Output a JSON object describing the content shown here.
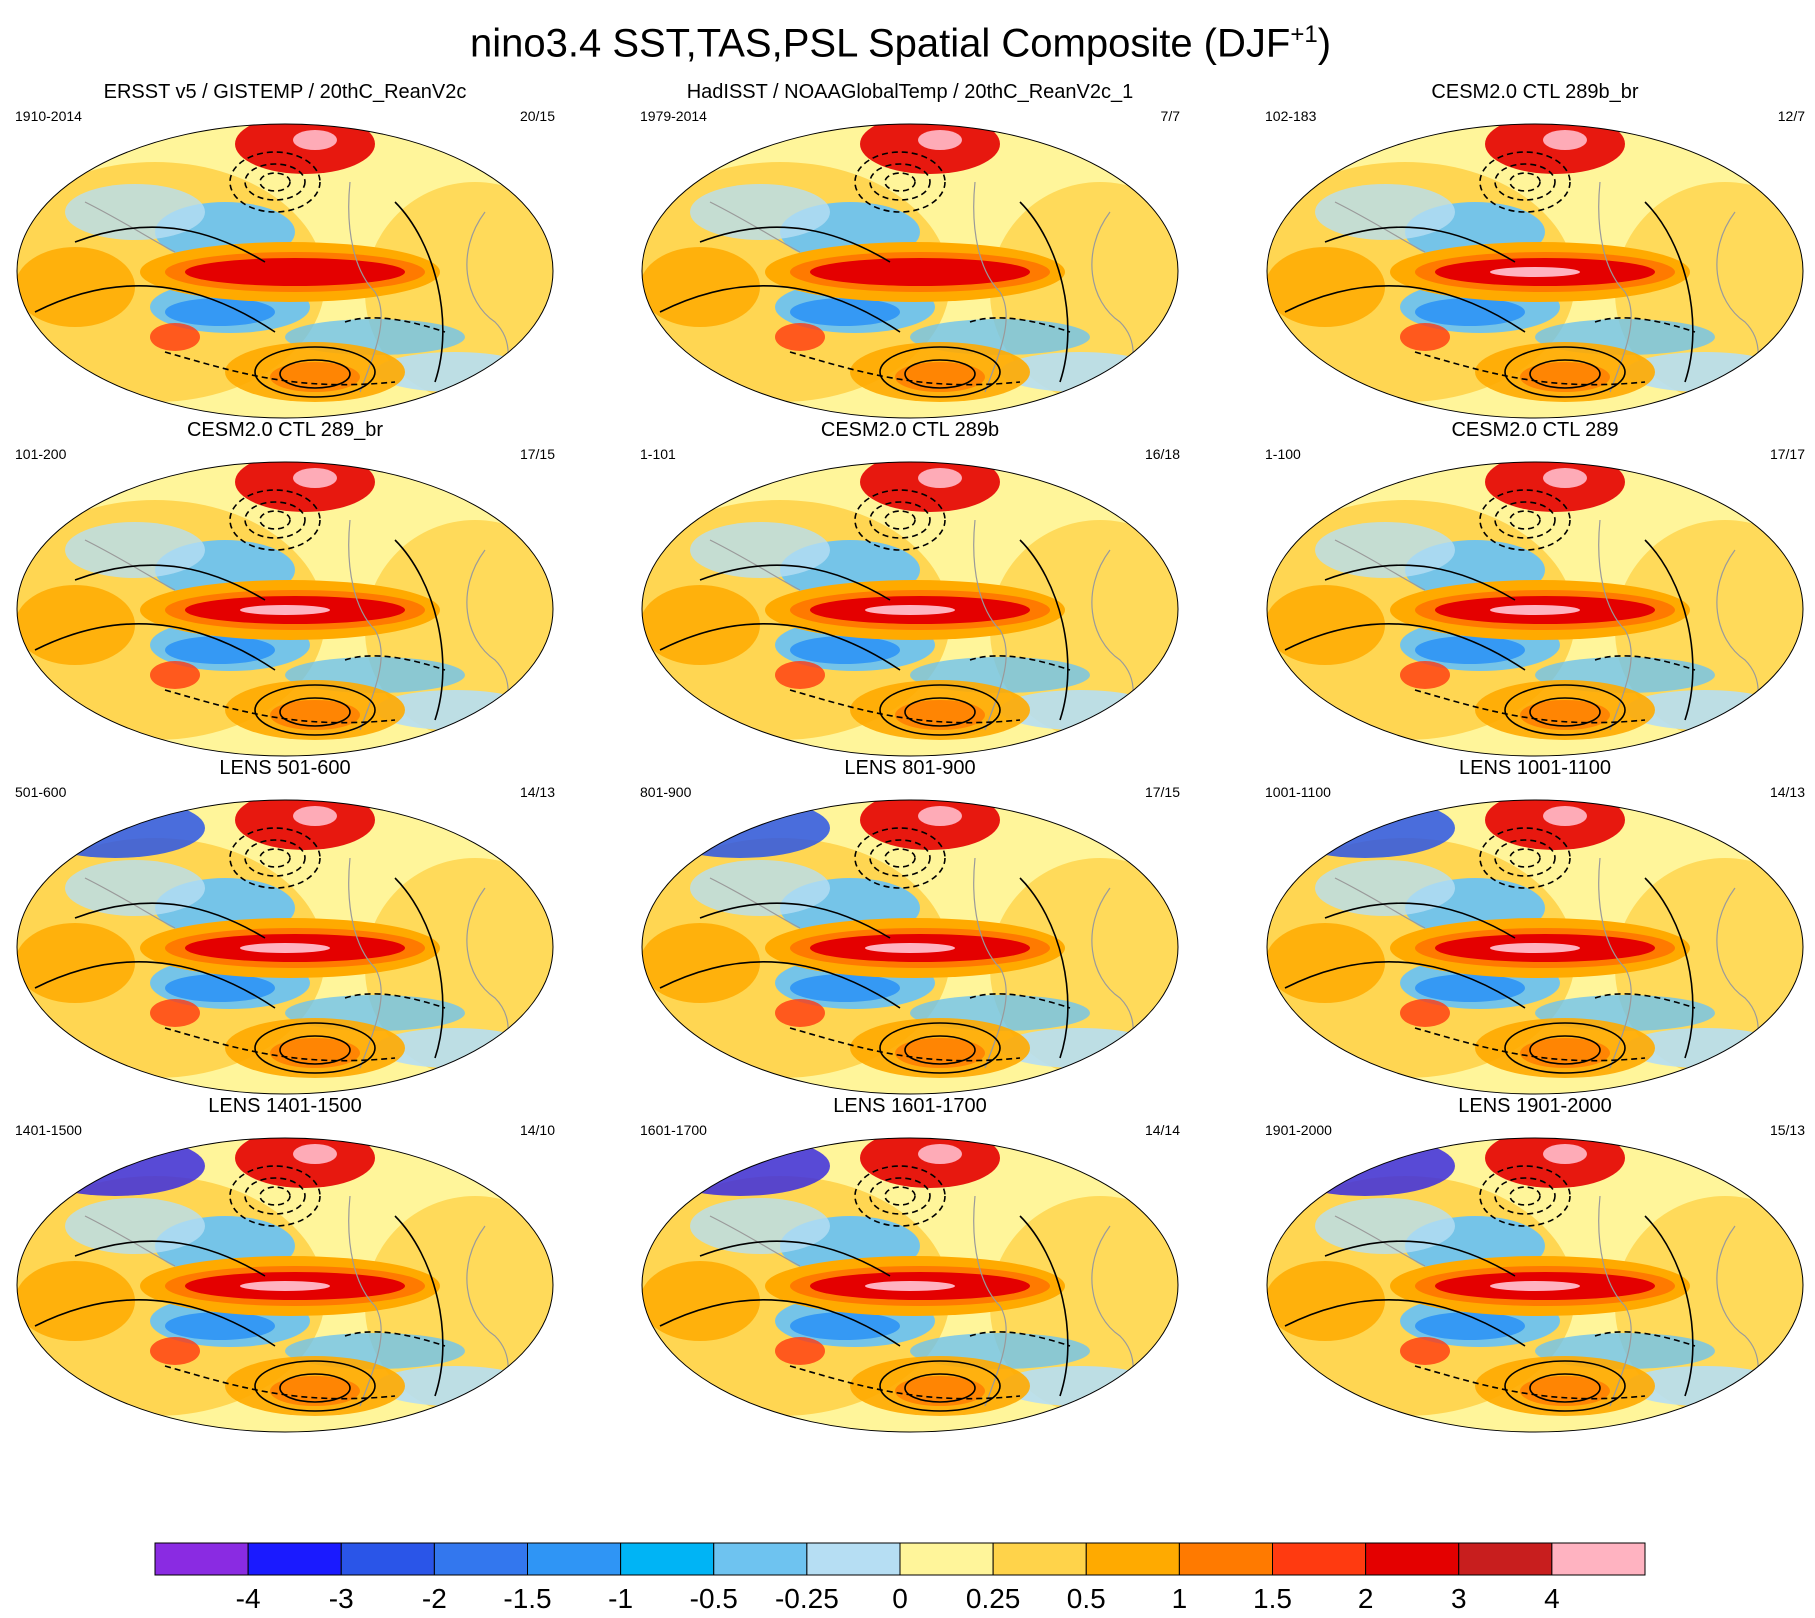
{
  "title": {
    "main": "nino3.4 SST,TAS,PSL Spatial Composite (DJF",
    "superscript": "+1",
    "close": ")"
  },
  "panels": [
    {
      "title": "ERSST v5 / GISTEMP / 20thC_ReanV2c",
      "left": "1910-2014",
      "right": "20/15"
    },
    {
      "title": "HadISST / NOAAGlobalTemp / 20thC_ReanV2c_1",
      "left": "1979-2014",
      "right": "7/7"
    },
    {
      "title": "CESM2.0 CTL 289b_br",
      "left": "102-183",
      "right": "12/7"
    },
    {
      "title": "CESM2.0 CTL 289_br",
      "left": "101-200",
      "right": "17/15"
    },
    {
      "title": "CESM2.0 CTL 289b",
      "left": "1-101",
      "right": "16/18"
    },
    {
      "title": "CESM2.0 CTL 289",
      "left": "1-100",
      "right": "17/17"
    },
    {
      "title": "LENS 501-600",
      "left": "501-600",
      "right": "14/13"
    },
    {
      "title": "LENS 801-900",
      "left": "801-900",
      "right": "17/15"
    },
    {
      "title": "LENS 1001-1100",
      "left": "1001-1100",
      "right": "14/13"
    },
    {
      "title": "LENS 1401-1500",
      "left": "1401-1500",
      "right": "14/10"
    },
    {
      "title": "LENS 1601-1700",
      "left": "1601-1700",
      "right": "14/14"
    },
    {
      "title": "LENS 1901-2000",
      "left": "1901-2000",
      "right": "15/13"
    }
  ],
  "colorbar": {
    "colors": [
      "#8a2be2",
      "#1a1aff",
      "#2a55e8",
      "#3377ee",
      "#2f95f5",
      "#00b4f5",
      "#6ec3f0",
      "#b6def3",
      "#fff59a",
      "#ffd34a",
      "#ffaa00",
      "#ff7a00",
      "#ff3a10",
      "#e40000",
      "#c81e1e",
      "#ffb3c1"
    ],
    "labels": [
      "-4",
      "-3",
      "-2",
      "-1.5",
      "-1",
      "-0.5",
      "-0.25",
      "0",
      "0.25",
      "0.5",
      "1",
      "1.5",
      "2",
      "3",
      "4"
    ]
  }
}
